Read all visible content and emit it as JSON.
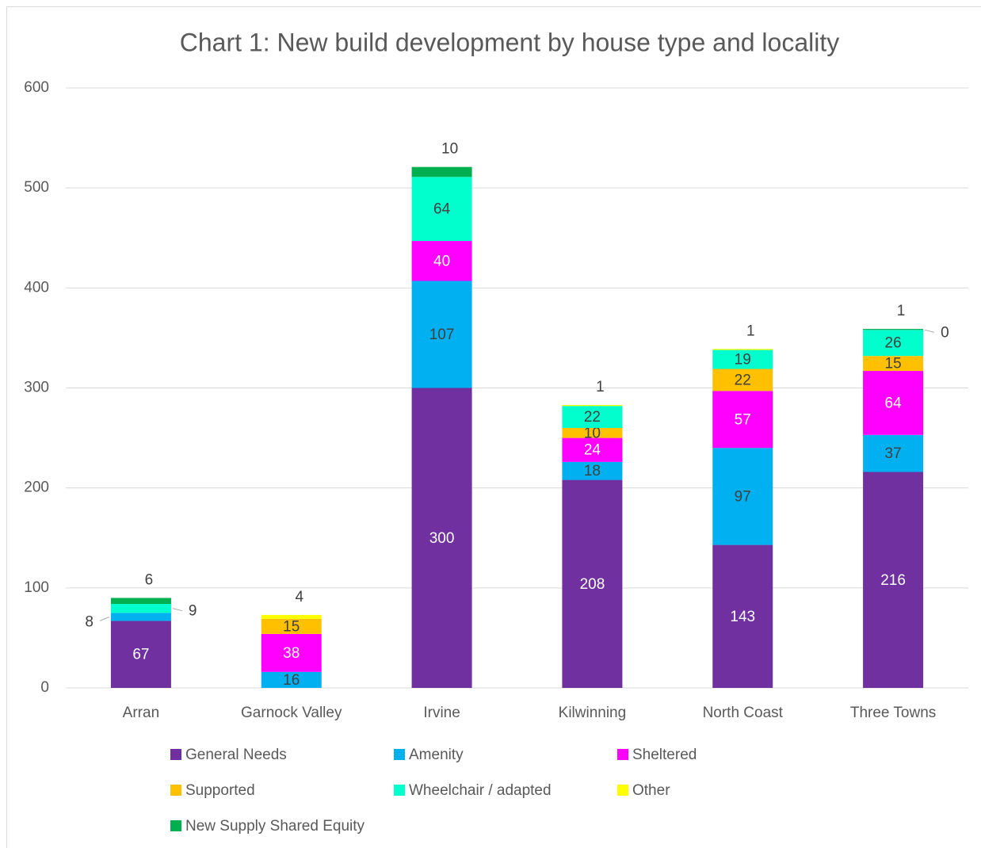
{
  "chart_data": {
    "type": "stacked_bar",
    "title": "Chart 1: New build development by house type and locality",
    "categories": [
      "Arran",
      "Garnock Valley",
      "Irvine",
      "Kilwinning",
      "North Coast",
      "Three Towns"
    ],
    "series": [
      {
        "name": "General Needs",
        "color": "#7030a0",
        "label_color": "#ffffff",
        "values": [
          67,
          null,
          300,
          208,
          143,
          216
        ]
      },
      {
        "name": "Amenity",
        "color": "#00b0f0",
        "label_color": "#404040",
        "values": [
          8,
          16,
          107,
          18,
          97,
          37
        ]
      },
      {
        "name": "Sheltered",
        "color": "#ff00ff",
        "label_color": "#ffffff",
        "values": [
          null,
          38,
          40,
          24,
          57,
          64
        ]
      },
      {
        "name": "Supported",
        "color": "#ffc000",
        "label_color": "#404040",
        "values": [
          null,
          15,
          null,
          10,
          22,
          15
        ]
      },
      {
        "name": "Wheelchair / adapted",
        "color": "#00ffcc",
        "label_color": "#404040",
        "values": [
          9,
          null,
          64,
          22,
          19,
          26
        ]
      },
      {
        "name": "Other",
        "color": "#ffff00",
        "label_color": "#404040",
        "values": [
          null,
          4,
          null,
          1,
          1,
          0
        ]
      },
      {
        "name": "New Supply Shared Equity",
        "color": "#00b050",
        "label_color": "#404040",
        "values": [
          6,
          null,
          10,
          null,
          null,
          1
        ]
      }
    ],
    "ylim": [
      0,
      600
    ],
    "yticks": [
      0,
      100,
      200,
      300,
      400,
      500,
      600
    ],
    "grid": true,
    "legend": "bottom"
  }
}
